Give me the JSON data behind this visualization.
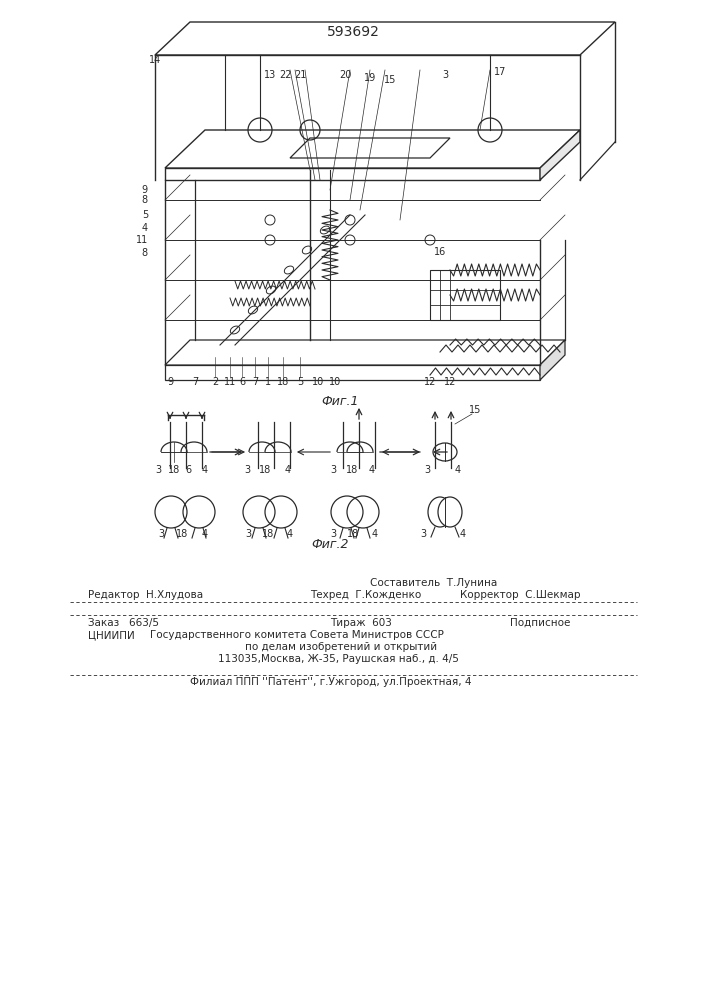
{
  "patent_number": "593692",
  "fig1_caption": "Фиг.1",
  "fig2_caption": "Фиг.2",
  "footer_col1_row1": "Редактор  Н.Хлудова",
  "footer_col2_row0": "Составитель  Т.Лунина",
  "footer_col2_row1": "Техред  Г.Кожденко",
  "footer_col3_row1": "Корректор  С.Шекмар",
  "footer2_col1": "Заказ   663/5",
  "footer2_col2a": "Тираж  603",
  "footer2_col3": "Подписное",
  "footer2_org": "ЦНИИПИ",
  "footer2_line1": "Государственного комитета Совета Министров СССР",
  "footer2_line2": "по делам изобретений и открытий",
  "footer2_line3": "113035,Москва, Ж-35, Раушская наб., д. 4/5",
  "footer3": "Филиал ППП ''Патент'', г.Ужгород, ул.Проектная, 4",
  "bg_color": "#ffffff",
  "line_color": "#2a2a2a",
  "fig1_labels_bottom": [
    "9",
    "7",
    "2",
    "11",
    "6",
    "7",
    "1",
    "18",
    "5",
    "10",
    "10",
    "12",
    "12"
  ],
  "fig1_labels_left": [
    "9",
    "8",
    "5",
    "4",
    "11",
    "8"
  ],
  "fig1_labels_top": [
    "14",
    "13",
    "22",
    "21",
    "20",
    "19",
    "15",
    "3",
    "17"
  ],
  "fig2_labels_top_row1": [
    "3",
    "18",
    "6",
    "4",
    "3",
    "18",
    "4",
    "3",
    "18",
    "4",
    "3",
    "4"
  ],
  "fig2_labels_bottom_row": [
    "3",
    "18",
    "4",
    "3",
    "18",
    "4",
    "3",
    "18",
    "4",
    "3",
    "4"
  ]
}
